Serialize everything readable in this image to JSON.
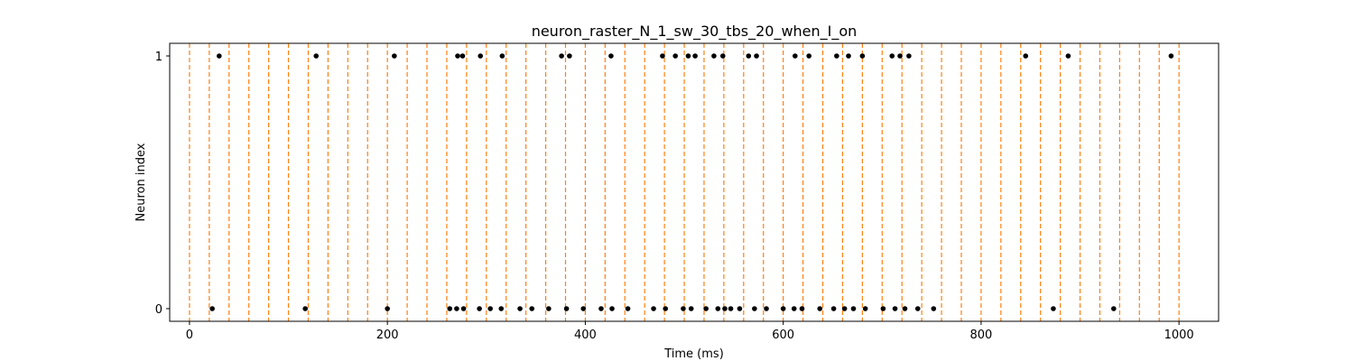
{
  "chart_data": {
    "type": "scatter",
    "title": "neuron_raster_N_1_sw_30_tbs_20_when_I_on",
    "xlabel": "Time (ms)",
    "ylabel": "Neuron index",
    "xlim": [
      -20,
      1040
    ],
    "ylim": [
      -0.05,
      1.05
    ],
    "xticks": [
      0,
      200,
      400,
      600,
      800,
      1000
    ],
    "yticks": [
      0,
      1
    ],
    "grid": false,
    "legend": "none",
    "colors": {
      "spike": "#000000",
      "time_bin_line": "#ff7f0e",
      "axis": "#000000"
    },
    "time_bin_lines": {
      "style": "dashed",
      "x": [
        0,
        20,
        40,
        60,
        80,
        100,
        120,
        140,
        160,
        180,
        200,
        220,
        240,
        260,
        280,
        300,
        320,
        340,
        360,
        380,
        400,
        420,
        440,
        460,
        480,
        500,
        520,
        540,
        560,
        580,
        600,
        620,
        640,
        660,
        680,
        700,
        720,
        740,
        760,
        780,
        800,
        820,
        840,
        860,
        880,
        900,
        920,
        940,
        960,
        980,
        1000
      ]
    },
    "series": [
      {
        "neuron": 1,
        "x": [
          30,
          128,
          207,
          271,
          276,
          294,
          316,
          376,
          384,
          426,
          478,
          491,
          504,
          511,
          530,
          539,
          565,
          573,
          612,
          626,
          654,
          666,
          680,
          710,
          718,
          727,
          845,
          888,
          992
        ]
      },
      {
        "neuron": 0,
        "x": [
          23,
          117,
          200,
          263,
          270,
          277,
          293,
          304,
          315,
          334,
          346,
          363,
          381,
          398,
          416,
          427,
          443,
          469,
          481,
          499,
          507,
          522,
          534,
          541,
          547,
          556,
          571,
          583,
          600,
          611,
          619,
          637,
          651,
          662,
          671,
          683,
          701,
          713,
          723,
          736,
          752,
          873,
          934
        ]
      }
    ]
  }
}
